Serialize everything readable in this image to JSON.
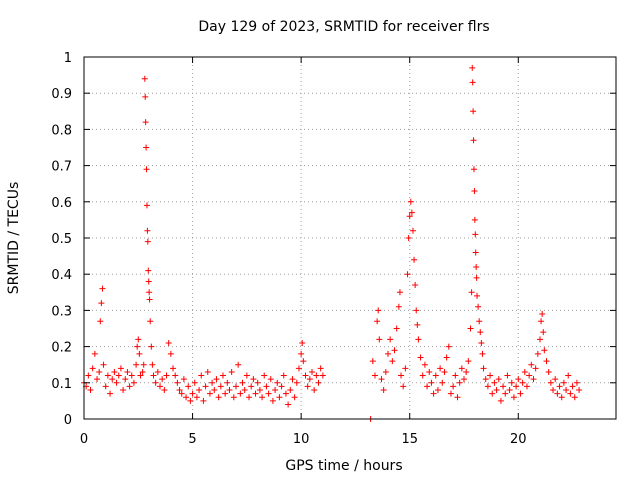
{
  "chart_data": {
    "type": "scatter",
    "title": "Day 129 of 2023, SRMTID for receiver flrs",
    "xlabel": "GPS time / hours",
    "ylabel": "SRMTID / TECUs",
    "xlim": [
      0,
      24.5
    ],
    "ylim": [
      0,
      1
    ],
    "xticks": [
      0,
      5,
      10,
      15,
      20
    ],
    "yticks": [
      0,
      0.1,
      0.2,
      0.3,
      0.4,
      0.5,
      0.6,
      0.7,
      0.8,
      0.9,
      1
    ],
    "xtick_labels": [
      "0",
      "5",
      "10",
      "15",
      "20"
    ],
    "ytick_labels": [
      "0",
      "0.1",
      "0.2",
      "0.3",
      "0.4",
      "0.5",
      "0.6",
      "0.7",
      "0.8",
      "0.9",
      "1"
    ],
    "grid": true,
    "marker": "+",
    "color": "#ff0000",
    "series": [
      {
        "name": "flrs",
        "points": [
          [
            0.0,
            0.1
          ],
          [
            0.1,
            0.09
          ],
          [
            0.2,
            0.12
          ],
          [
            0.3,
            0.08
          ],
          [
            0.4,
            0.14
          ],
          [
            0.5,
            0.18
          ],
          [
            0.6,
            0.11
          ],
          [
            0.7,
            0.13
          ],
          [
            0.75,
            0.27
          ],
          [
            0.8,
            0.32
          ],
          [
            0.85,
            0.36
          ],
          [
            0.9,
            0.15
          ],
          [
            1.0,
            0.09
          ],
          [
            1.1,
            0.12
          ],
          [
            1.2,
            0.07
          ],
          [
            1.3,
            0.11
          ],
          [
            1.4,
            0.13
          ],
          [
            1.5,
            0.1
          ],
          [
            1.6,
            0.12
          ],
          [
            1.7,
            0.14
          ],
          [
            1.8,
            0.08
          ],
          [
            1.9,
            0.11
          ],
          [
            2.0,
            0.13
          ],
          [
            2.1,
            0.09
          ],
          [
            2.2,
            0.12
          ],
          [
            2.3,
            0.1
          ],
          [
            2.4,
            0.15
          ],
          [
            2.45,
            0.2
          ],
          [
            2.5,
            0.22
          ],
          [
            2.55,
            0.18
          ],
          [
            2.6,
            0.12
          ],
          [
            2.7,
            0.13
          ],
          [
            2.75,
            0.15
          ],
          [
            2.8,
            0.94
          ],
          [
            2.82,
            0.89
          ],
          [
            2.84,
            0.82
          ],
          [
            2.86,
            0.75
          ],
          [
            2.88,
            0.69
          ],
          [
            2.9,
            0.59
          ],
          [
            2.92,
            0.52
          ],
          [
            2.94,
            0.49
          ],
          [
            2.96,
            0.41
          ],
          [
            2.98,
            0.38
          ],
          [
            3.0,
            0.35
          ],
          [
            3.02,
            0.33
          ],
          [
            3.05,
            0.27
          ],
          [
            3.1,
            0.2
          ],
          [
            3.15,
            0.15
          ],
          [
            3.2,
            0.12
          ],
          [
            3.3,
            0.1
          ],
          [
            3.4,
            0.13
          ],
          [
            3.5,
            0.09
          ],
          [
            3.6,
            0.11
          ],
          [
            3.7,
            0.08
          ],
          [
            3.8,
            0.12
          ],
          [
            3.9,
            0.21
          ],
          [
            4.0,
            0.18
          ],
          [
            4.1,
            0.14
          ],
          [
            4.2,
            0.12
          ],
          [
            4.3,
            0.1
          ],
          [
            4.4,
            0.08
          ],
          [
            4.5,
            0.07
          ],
          [
            4.6,
            0.11
          ],
          [
            4.7,
            0.06
          ],
          [
            4.8,
            0.09
          ],
          [
            4.9,
            0.05
          ],
          [
            5.0,
            0.07
          ],
          [
            5.1,
            0.1
          ],
          [
            5.2,
            0.06
          ],
          [
            5.3,
            0.08
          ],
          [
            5.4,
            0.12
          ],
          [
            5.5,
            0.05
          ],
          [
            5.6,
            0.09
          ],
          [
            5.7,
            0.13
          ],
          [
            5.8,
            0.07
          ],
          [
            5.9,
            0.1
          ],
          [
            6.0,
            0.08
          ],
          [
            6.1,
            0.11
          ],
          [
            6.2,
            0.06
          ],
          [
            6.3,
            0.09
          ],
          [
            6.4,
            0.12
          ],
          [
            6.5,
            0.07
          ],
          [
            6.6,
            0.1
          ],
          [
            6.7,
            0.08
          ],
          [
            6.8,
            0.13
          ],
          [
            6.9,
            0.06
          ],
          [
            7.0,
            0.09
          ],
          [
            7.1,
            0.15
          ],
          [
            7.2,
            0.07
          ],
          [
            7.3,
            0.1
          ],
          [
            7.4,
            0.08
          ],
          [
            7.5,
            0.12
          ],
          [
            7.6,
            0.06
          ],
          [
            7.7,
            0.09
          ],
          [
            7.8,
            0.11
          ],
          [
            7.9,
            0.07
          ],
          [
            8.0,
            0.1
          ],
          [
            8.1,
            0.08
          ],
          [
            8.2,
            0.06
          ],
          [
            8.3,
            0.12
          ],
          [
            8.4,
            0.09
          ],
          [
            8.5,
            0.07
          ],
          [
            8.6,
            0.11
          ],
          [
            8.7,
            0.05
          ],
          [
            8.8,
            0.08
          ],
          [
            8.9,
            0.1
          ],
          [
            9.0,
            0.06
          ],
          [
            9.1,
            0.09
          ],
          [
            9.2,
            0.12
          ],
          [
            9.3,
            0.07
          ],
          [
            9.4,
            0.04
          ],
          [
            9.5,
            0.08
          ],
          [
            9.6,
            0.11
          ],
          [
            9.7,
            0.06
          ],
          [
            9.8,
            0.1
          ],
          [
            9.9,
            0.14
          ],
          [
            10.0,
            0.18
          ],
          [
            10.05,
            0.21
          ],
          [
            10.1,
            0.16
          ],
          [
            10.2,
            0.12
          ],
          [
            10.3,
            0.09
          ],
          [
            10.4,
            0.11
          ],
          [
            10.5,
            0.13
          ],
          [
            10.6,
            0.08
          ],
          [
            10.7,
            0.12
          ],
          [
            10.8,
            0.1
          ],
          [
            10.9,
            0.14
          ],
          [
            11.0,
            0.12
          ],
          [
            13.2,
            0.0
          ],
          [
            13.3,
            0.16
          ],
          [
            13.4,
            0.12
          ],
          [
            13.5,
            0.27
          ],
          [
            13.55,
            0.3
          ],
          [
            13.6,
            0.22
          ],
          [
            13.7,
            0.11
          ],
          [
            13.8,
            0.08
          ],
          [
            13.9,
            0.13
          ],
          [
            14.0,
            0.18
          ],
          [
            14.1,
            0.22
          ],
          [
            14.2,
            0.16
          ],
          [
            14.3,
            0.19
          ],
          [
            14.4,
            0.25
          ],
          [
            14.5,
            0.31
          ],
          [
            14.55,
            0.35
          ],
          [
            14.6,
            0.12
          ],
          [
            14.7,
            0.09
          ],
          [
            14.8,
            0.14
          ],
          [
            14.9,
            0.4
          ],
          [
            14.95,
            0.5
          ],
          [
            15.0,
            0.56
          ],
          [
            15.05,
            0.6
          ],
          [
            15.1,
            0.57
          ],
          [
            15.15,
            0.52
          ],
          [
            15.2,
            0.44
          ],
          [
            15.25,
            0.37
          ],
          [
            15.3,
            0.3
          ],
          [
            15.35,
            0.26
          ],
          [
            15.4,
            0.22
          ],
          [
            15.5,
            0.17
          ],
          [
            15.6,
            0.12
          ],
          [
            15.7,
            0.15
          ],
          [
            15.8,
            0.09
          ],
          [
            15.9,
            0.13
          ],
          [
            16.0,
            0.1
          ],
          [
            16.1,
            0.07
          ],
          [
            16.2,
            0.12
          ],
          [
            16.3,
            0.08
          ],
          [
            16.4,
            0.14
          ],
          [
            16.5,
            0.1
          ],
          [
            16.6,
            0.13
          ],
          [
            16.7,
            0.17
          ],
          [
            16.8,
            0.2
          ],
          [
            16.9,
            0.07
          ],
          [
            17.0,
            0.09
          ],
          [
            17.1,
            0.12
          ],
          [
            17.2,
            0.06
          ],
          [
            17.3,
            0.1
          ],
          [
            17.4,
            0.14
          ],
          [
            17.5,
            0.11
          ],
          [
            17.6,
            0.13
          ],
          [
            17.7,
            0.16
          ],
          [
            17.8,
            0.25
          ],
          [
            17.85,
            0.35
          ],
          [
            17.88,
            0.97
          ],
          [
            17.9,
            0.93
          ],
          [
            17.92,
            0.85
          ],
          [
            17.94,
            0.77
          ],
          [
            17.96,
            0.69
          ],
          [
            17.98,
            0.63
          ],
          [
            18.0,
            0.55
          ],
          [
            18.02,
            0.51
          ],
          [
            18.04,
            0.46
          ],
          [
            18.06,
            0.42
          ],
          [
            18.08,
            0.39
          ],
          [
            18.1,
            0.34
          ],
          [
            18.15,
            0.31
          ],
          [
            18.2,
            0.27
          ],
          [
            18.25,
            0.24
          ],
          [
            18.3,
            0.21
          ],
          [
            18.35,
            0.18
          ],
          [
            18.4,
            0.14
          ],
          [
            18.5,
            0.11
          ],
          [
            18.6,
            0.09
          ],
          [
            18.7,
            0.12
          ],
          [
            18.8,
            0.07
          ],
          [
            18.9,
            0.1
          ],
          [
            19.0,
            0.08
          ],
          [
            19.1,
            0.11
          ],
          [
            19.2,
            0.05
          ],
          [
            19.3,
            0.09
          ],
          [
            19.4,
            0.07
          ],
          [
            19.5,
            0.12
          ],
          [
            19.6,
            0.08
          ],
          [
            19.7,
            0.1
          ],
          [
            19.8,
            0.06
          ],
          [
            19.9,
            0.09
          ],
          [
            20.0,
            0.11
          ],
          [
            20.1,
            0.07
          ],
          [
            20.2,
            0.1
          ],
          [
            20.3,
            0.13
          ],
          [
            20.4,
            0.09
          ],
          [
            20.5,
            0.12
          ],
          [
            20.6,
            0.15
          ],
          [
            20.7,
            0.11
          ],
          [
            20.8,
            0.14
          ],
          [
            20.9,
            0.18
          ],
          [
            21.0,
            0.22
          ],
          [
            21.05,
            0.27
          ],
          [
            21.1,
            0.29
          ],
          [
            21.15,
            0.24
          ],
          [
            21.2,
            0.19
          ],
          [
            21.3,
            0.16
          ],
          [
            21.4,
            0.13
          ],
          [
            21.5,
            0.1
          ],
          [
            21.6,
            0.08
          ],
          [
            21.7,
            0.11
          ],
          [
            21.8,
            0.07
          ],
          [
            21.9,
            0.09
          ],
          [
            22.0,
            0.06
          ],
          [
            22.1,
            0.1
          ],
          [
            22.2,
            0.08
          ],
          [
            22.3,
            0.12
          ],
          [
            22.4,
            0.07
          ],
          [
            22.5,
            0.09
          ],
          [
            22.6,
            0.06
          ],
          [
            22.7,
            0.1
          ],
          [
            22.8,
            0.08
          ]
        ]
      }
    ]
  }
}
